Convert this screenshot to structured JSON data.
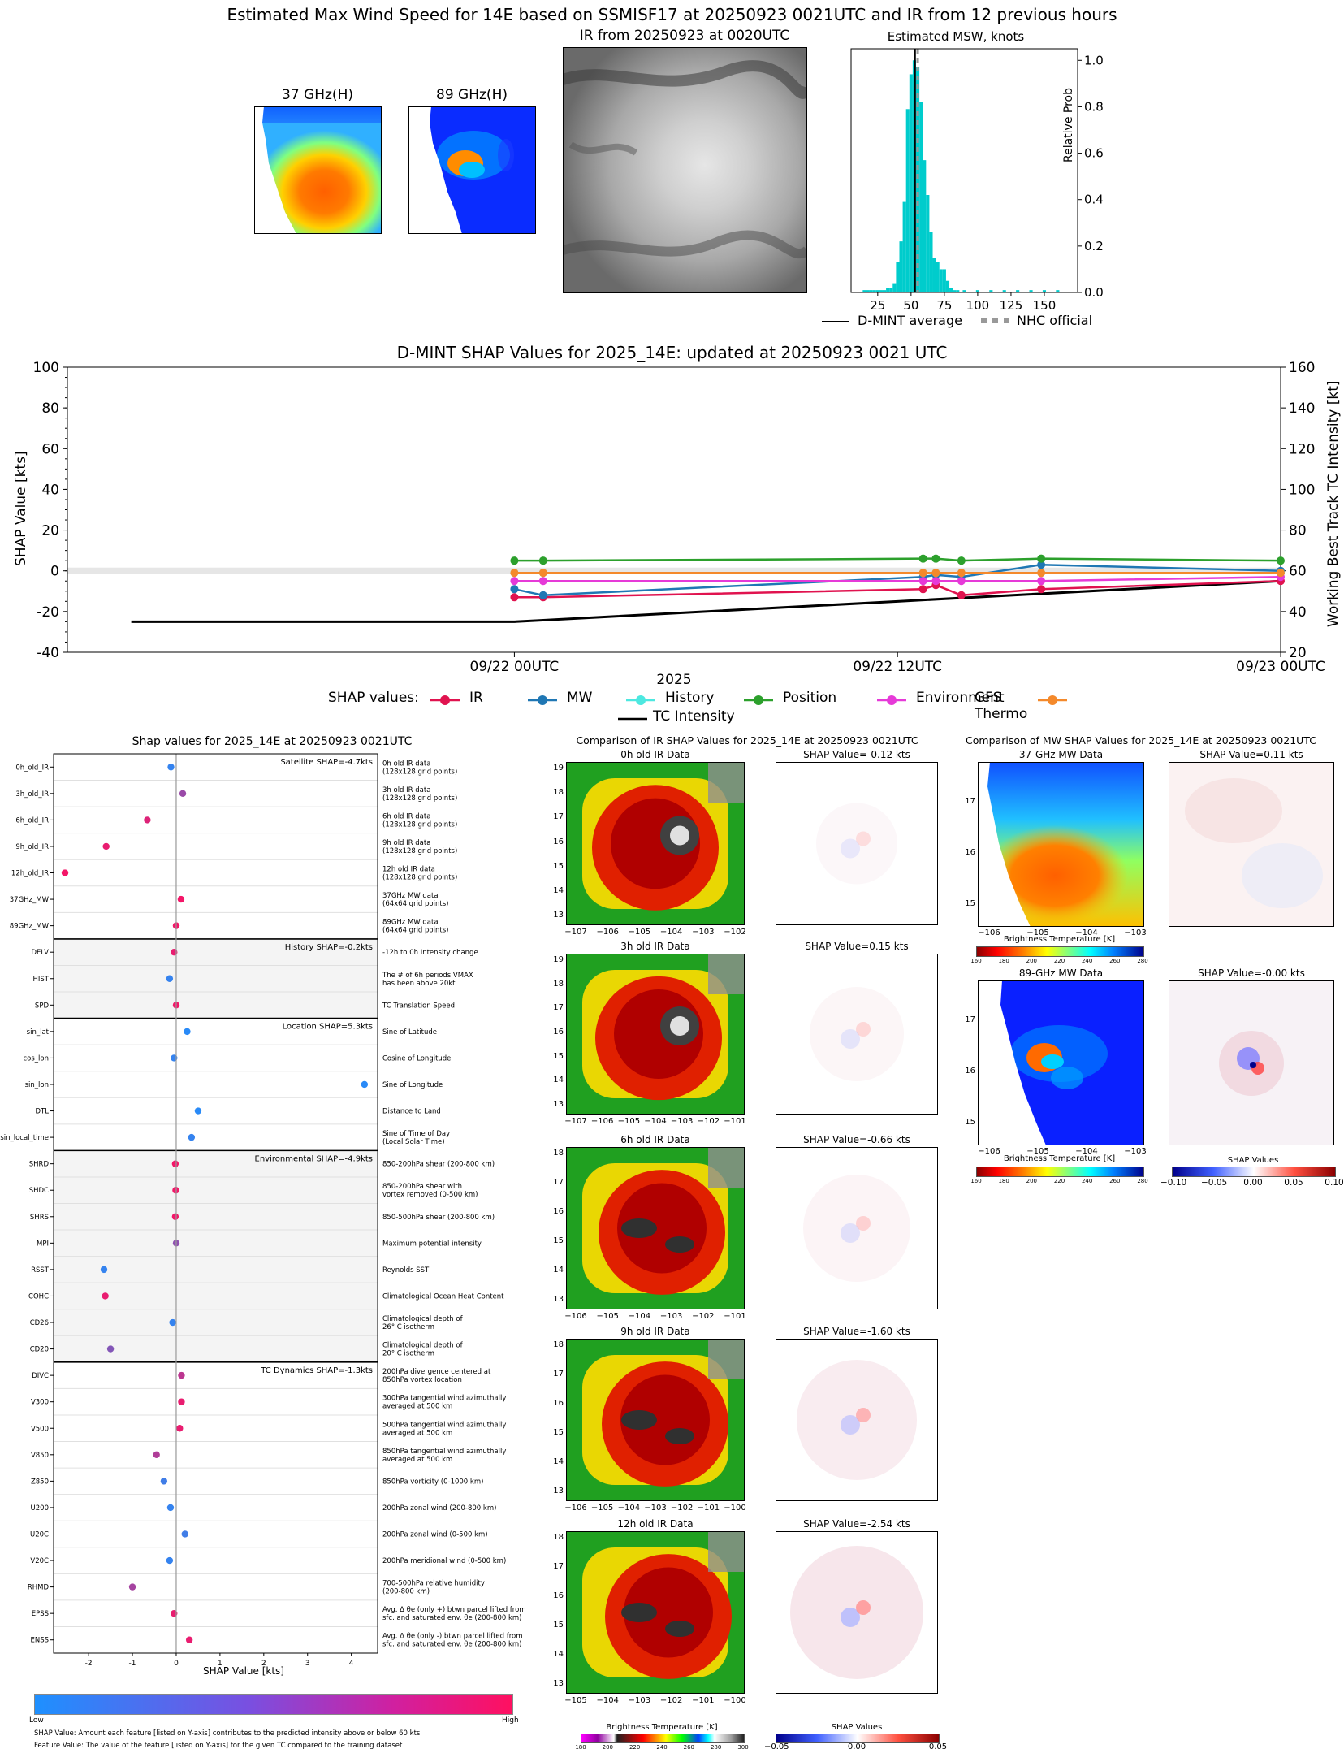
{
  "colors": {
    "ir": "#e0134f",
    "mw": "#1f77b4",
    "history": "#4de8e0",
    "position": "#2ca02c",
    "environment": "#e63ad8",
    "gfs_thermo": "#f4892b",
    "tc_intensity": "#000000",
    "hist_bar": "#00cccc",
    "low": "#1e90ff",
    "high": "#ff1060"
  },
  "top": {
    "title": "Estimated Max Wind Speed for 14E based on SSMISF17 at 20250923 0021UTC and IR from 12 previous hours",
    "ghz37_title": "37 GHz(H)",
    "ghz89_title": "89 GHz(H)",
    "ir_title": "IR from 20250923 at 0020UTC",
    "hist_title": "Estimated MSW, knots",
    "hist_ylabel": "Relative Prob",
    "legend_dmint": "D-MINT average",
    "legend_nhc": "NHC official"
  },
  "shap_ts": {
    "title": "D-MINT SHAP Values for 2025_14E: updated at 20250923 0021 UTC",
    "ylabel_left": "SHAP Value [kts]",
    "ylabel_right": "Working Best Track TC Intensity [kt]",
    "xlabel": "2025",
    "legend_prefix": "SHAP values:",
    "legend_ir": "IR",
    "legend_mw": "MW",
    "legend_history": "History",
    "legend_position": "Position",
    "legend_environment": "Environment",
    "legend_gfs": "GFS Thermo",
    "legend_tc": "TC Intensity"
  },
  "shap_bar": {
    "title": "Shap values for 2025_14E at 20250923 0021UTC",
    "xlabel": "SHAP Value [kts]",
    "cb_low": "Low",
    "cb_high": "High",
    "footnote1": "SHAP Value: Amount each feature [listed on Y-axis] contributes to the predicted intensity above or below 60 kts",
    "footnote2": "Feature Value: The value of the feature [listed on Y-axis] for the given TC compared to the training dataset"
  },
  "ir_comp": {
    "title": "Comparison of IR SHAP Values for 2025_14E at 20250923 0021UTC",
    "panels": [
      {
        "label": "0h old IR Data",
        "shap": "SHAP Value=-0.12 kts"
      },
      {
        "label": "3h old IR Data",
        "shap": "SHAP Value=0.15 kts"
      },
      {
        "label": "6h old IR Data",
        "shap": "SHAP Value=-0.66 kts"
      },
      {
        "label": "9h old IR Data",
        "shap": "SHAP Value=-1.60 kts"
      },
      {
        "label": "12h old IR Data",
        "shap": "SHAP Value=-2.54 kts"
      }
    ],
    "cb_label": "Brightness Temperature [K]",
    "cb_shap_label": "SHAP Values"
  },
  "mw_comp": {
    "title": "Comparison of MW SHAP Values for 2025_14E at 20250923 0021UTC",
    "panel37": "37-GHz MW Data",
    "shap37": "SHAP Value=0.11 kts",
    "panel89": "89-GHz MW Data",
    "shap89": "SHAP Value=-0.00 kts",
    "cb_label": "Brightness Temperature [K]",
    "cb_shap_label": "SHAP Values"
  },
  "chart_data": [
    {
      "type": "bar",
      "title": "Estimated MSW, knots",
      "xlabel": "",
      "ylabel": "Relative Prob",
      "xlim": [
        5,
        175
      ],
      "ylim": [
        0,
        1.05
      ],
      "xticks": [
        25,
        50,
        75,
        100,
        125,
        150
      ],
      "yticks": [
        0.0,
        0.2,
        0.4,
        0.6,
        0.8,
        1.0
      ],
      "bin_width": 2.5,
      "bins": [
        {
          "x": 15,
          "y": 0.01
        },
        {
          "x": 17.5,
          "y": 0.01
        },
        {
          "x": 20,
          "y": 0.01
        },
        {
          "x": 22.5,
          "y": 0.01
        },
        {
          "x": 25,
          "y": 0.01
        },
        {
          "x": 27.5,
          "y": 0.01
        },
        {
          "x": 30,
          "y": 0.01
        },
        {
          "x": 32.5,
          "y": 0.02
        },
        {
          "x": 35,
          "y": 0.02
        },
        {
          "x": 37.5,
          "y": 0.04
        },
        {
          "x": 40,
          "y": 0.13
        },
        {
          "x": 42.5,
          "y": 0.22
        },
        {
          "x": 45,
          "y": 0.39
        },
        {
          "x": 47.5,
          "y": 0.79
        },
        {
          "x": 50,
          "y": 0.94
        },
        {
          "x": 52.5,
          "y": 1.0
        },
        {
          "x": 55,
          "y": 0.97
        },
        {
          "x": 57.5,
          "y": 0.82
        },
        {
          "x": 60,
          "y": 0.57
        },
        {
          "x": 62.5,
          "y": 0.42
        },
        {
          "x": 65,
          "y": 0.26
        },
        {
          "x": 67.5,
          "y": 0.15
        },
        {
          "x": 70,
          "y": 0.13
        },
        {
          "x": 72.5,
          "y": 0.1
        },
        {
          "x": 75,
          "y": 0.1
        },
        {
          "x": 77.5,
          "y": 0.05
        },
        {
          "x": 80,
          "y": 0.02
        },
        {
          "x": 82.5,
          "y": 0.01
        },
        {
          "x": 85,
          "y": 0.01
        },
        {
          "x": 90,
          "y": 0.01
        },
        {
          "x": 100,
          "y": 0.01
        },
        {
          "x": 110,
          "y": 0.01
        },
        {
          "x": 120,
          "y": 0.01
        },
        {
          "x": 130,
          "y": 0.01
        },
        {
          "x": 140,
          "y": 0.01
        },
        {
          "x": 150,
          "y": 0.01
        },
        {
          "x": 160,
          "y": 0.01
        }
      ],
      "dmint_average": 53,
      "nhc_official": 55
    },
    {
      "type": "line",
      "title": "D-MINT SHAP Values for 2025_14E: updated at 20250923 0021 UTC",
      "xlabel": "2025",
      "ylabel": "SHAP Value [kts]",
      "ylabel_right": "Working Best Track TC Intensity [kt]",
      "ylim": [
        -40,
        100
      ],
      "ylim_right": [
        20,
        160
      ],
      "yticks": [
        -40,
        -20,
        0,
        20,
        40,
        60,
        80,
        100
      ],
      "yticks_right": [
        20,
        40,
        60,
        80,
        100,
        120,
        140,
        160
      ],
      "xlim_hours": [
        -14,
        24
      ],
      "xticks": [
        {
          "h": 0,
          "label": "09/22 00UTC"
        },
        {
          "h": 12,
          "label": "09/22 12UTC"
        },
        {
          "h": 24,
          "label": "09/23 00UTC"
        }
      ],
      "x_hours": [
        0,
        0.9,
        12.8,
        13.2,
        14.0,
        16.5,
        24
      ],
      "series": [
        {
          "name": "IR",
          "key": "ir",
          "values": [
            -13,
            -13,
            -9,
            -7,
            -12,
            -9,
            -5
          ]
        },
        {
          "name": "MW",
          "key": "mw",
          "values": [
            -9,
            -12,
            -3,
            -2,
            -3,
            3,
            0
          ]
        },
        {
          "name": "History",
          "key": "history",
          "values": [
            -1,
            -1,
            -1,
            -1,
            -1,
            -1,
            -1
          ]
        },
        {
          "name": "Position",
          "key": "position",
          "values": [
            5,
            5,
            6,
            6,
            5,
            6,
            5
          ]
        },
        {
          "name": "Environment",
          "key": "environment",
          "values": [
            -5,
            -5,
            -5,
            -5,
            -5,
            -5,
            -3
          ]
        },
        {
          "name": "GFS Thermo",
          "key": "gfs_thermo",
          "values": [
            -1,
            -1,
            -1,
            -1,
            -1,
            -1,
            -1
          ]
        }
      ],
      "tc_intensity": {
        "name": "TC Intensity",
        "x_hours": [
          -12,
          0,
          12,
          24
        ],
        "values": [
          35,
          35,
          45,
          55
        ]
      }
    },
    {
      "type": "scatter",
      "title": "Shap values for 2025_14E at 20250923 0021UTC",
      "xlabel": "SHAP Value [kts]",
      "xlim": [
        -2.8,
        4.6
      ],
      "xticks": [
        -2,
        -1,
        0,
        1,
        2,
        3,
        4
      ],
      "groups": [
        {
          "label": "Satellite SHAP=-4.7kts",
          "shade": false,
          "features": [
            {
              "name": "0h_old_IR",
              "desc": "0h old IR data|(128x128 grid points)",
              "value": -0.12,
              "feature": 0.1
            },
            {
              "name": "3h_old_IR",
              "desc": "3h old IR data|(128x128 grid points)",
              "value": 0.15,
              "feature": 0.55
            },
            {
              "name": "6h_old_IR",
              "desc": "6h old IR data|(128x128 grid points)",
              "value": -0.66,
              "feature": 0.85
            },
            {
              "name": "9h_old_IR",
              "desc": "9h old IR data|(128x128 grid points)",
              "value": -1.6,
              "feature": 0.9
            },
            {
              "name": "12h_old_IR",
              "desc": "12h old IR data|(128x128 grid points)",
              "value": -2.54,
              "feature": 0.95
            },
            {
              "name": "37GHz_MW",
              "desc": "37GHz MW data|(64x64 grid points)",
              "value": 0.11,
              "feature": 0.95
            },
            {
              "name": "89GHz_MW",
              "desc": "89GHz MW data|(64x64 grid points)",
              "value": 0.0,
              "feature": 0.95
            }
          ]
        },
        {
          "label": "History SHAP=-0.2kts",
          "shade": true,
          "features": [
            {
              "name": "DELV",
              "desc": "-12h to 0h Intensity change",
              "value": -0.05,
              "feature": 0.9
            },
            {
              "name": "HIST",
              "desc": "The # of 6h periods VMAX|has been above 20kt",
              "value": -0.15,
              "feature": 0.1
            },
            {
              "name": "SPD",
              "desc": "TC Translation Speed",
              "value": 0.0,
              "feature": 0.95
            }
          ]
        },
        {
          "label": "Location SHAP=5.3kts",
          "shade": false,
          "features": [
            {
              "name": "sin_lat",
              "desc": "Sine of Latitude",
              "value": 0.25,
              "feature": 0.05
            },
            {
              "name": "cos_lon",
              "desc": "Cosine of Longitude",
              "value": -0.05,
              "feature": 0.1
            },
            {
              "name": "sin_lon",
              "desc": "Sine of Longitude",
              "value": 4.3,
              "feature": 0.05
            },
            {
              "name": "DTL",
              "desc": "Distance to Land",
              "value": 0.5,
              "feature": 0.05
            },
            {
              "name": "sin_local_time",
              "desc": "Sine of Time of Day|(Local Solar Time)",
              "value": 0.35,
              "feature": 0.1
            }
          ]
        },
        {
          "label": "Environmental SHAP=-4.9kts",
          "shade": true,
          "features": [
            {
              "name": "SHRD",
              "desc": "850-200hPa shear (200-800 km)",
              "value": -0.02,
              "feature": 0.95
            },
            {
              "name": "SHDC",
              "desc": "850-200hPa shear with|vortex removed (0-500 km)",
              "value": -0.01,
              "feature": 0.95
            },
            {
              "name": "SHRS",
              "desc": "850-500hPa shear (200-800 km)",
              "value": -0.02,
              "feature": 0.95
            },
            {
              "name": "MPI",
              "desc": "Maximum potential intensity",
              "value": 0.0,
              "feature": 0.5
            },
            {
              "name": "RSST",
              "desc": "Reynolds SST",
              "value": -1.65,
              "feature": 0.1
            },
            {
              "name": "COHC",
              "desc": "Climatological Ocean Heat Content",
              "value": -1.62,
              "feature": 0.9
            },
            {
              "name": "CD26",
              "desc": "Climatological depth of|26° C isotherm",
              "value": -0.08,
              "feature": 0.1
            },
            {
              "name": "CD20",
              "desc": "Climatological depth of|20° C isotherm",
              "value": -1.5,
              "feature": 0.45
            }
          ]
        },
        {
          "label": "TC Dynamics SHAP=-1.3kts",
          "shade": false,
          "features": [
            {
              "name": "DIVC",
              "desc": "200hPa divergence centered at|850hPa vortex location",
              "value": 0.12,
              "feature": 0.7
            },
            {
              "name": "V300",
              "desc": "300hPa tangential wind azimuthally|averaged at 500 km",
              "value": 0.12,
              "feature": 0.9
            },
            {
              "name": "V500",
              "desc": "500hPa tangential wind azimuthally|averaged at 500 km",
              "value": 0.08,
              "feature": 0.9
            },
            {
              "name": "V850",
              "desc": "850hPa tangential wind azimuthally|averaged at 500 km",
              "value": -0.45,
              "feature": 0.65
            },
            {
              "name": "Z850",
              "desc": "850hPa vorticity (0-1000 km)",
              "value": -0.28,
              "feature": 0.15
            },
            {
              "name": "U200",
              "desc": "200hPa zonal wind (200-800 km)",
              "value": -0.13,
              "feature": 0.1
            },
            {
              "name": "U20C",
              "desc": "200hPa zonal wind (0-500 km)",
              "value": 0.2,
              "feature": 0.15
            },
            {
              "name": "V20C",
              "desc": "200hPa meridional wind (0-500 km)",
              "value": -0.15,
              "feature": 0.1
            },
            {
              "name": "RHMD",
              "desc": "700-500hPa relative humidity|(200-800 km)",
              "value": -1.0,
              "feature": 0.6
            },
            {
              "name": "EPSS",
              "desc": "Avg. Δ θe (only +) btwn parcel lifted from|sfc. and saturated env. θe (200-800 km)",
              "value": -0.05,
              "feature": 0.9
            },
            {
              "name": "ENSS",
              "desc": "Avg. Δ θe (only -) btwn parcel lifted from|sfc. and saturated env. θe (200-800 km)",
              "value": 0.3,
              "feature": 0.9
            }
          ]
        }
      ]
    }
  ],
  "axes": {
    "ghz_x": [
      -106,
      -105,
      -104,
      -103
    ],
    "ghz_y": [
      15,
      16,
      17
    ],
    "ir_x": [
      [
        -107,
        -106,
        -105,
        -104,
        -103,
        -102
      ],
      [
        -107,
        -106,
        -105,
        -104,
        -103,
        -102,
        -101
      ],
      [
        -106,
        -105,
        -104,
        -103,
        -102,
        -101
      ],
      [
        -106,
        -105,
        -104,
        -103,
        -102,
        -101,
        -100
      ],
      [
        -105,
        -104,
        -103,
        -102,
        -101,
        -100
      ]
    ],
    "ir_y": [
      [
        13,
        14,
        15,
        16,
        17,
        18,
        19
      ],
      [
        13,
        14,
        15,
        16,
        17,
        18,
        19
      ],
      [
        13,
        14,
        15,
        16,
        17,
        18
      ],
      [
        13,
        14,
        15,
        16,
        17,
        18
      ],
      [
        13,
        14,
        15,
        16,
        17,
        18
      ]
    ],
    "bt_cb_ticks": [
      "160",
      "180",
      "200",
      "220",
      "240",
      "260",
      "280"
    ],
    "ir_cb_ticks": [
      "180",
      "200",
      "220",
      "240",
      "260",
      "280",
      "300"
    ],
    "shap_cb_ticks_mw": [
      "−0.10",
      "−0.05",
      "0.00",
      "0.05",
      "0.10"
    ],
    "shap_cb_ticks_ir": [
      "−0.05",
      "0.00",
      "0.05"
    ]
  }
}
